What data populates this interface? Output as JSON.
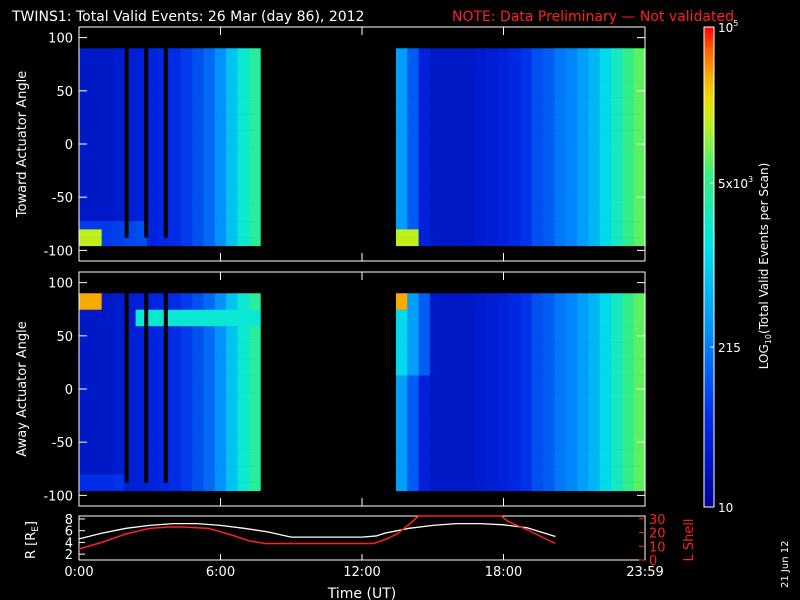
{
  "header": {
    "title": "TWINS1: Total Valid Events: 26 Mar (day  86), 2012",
    "note": "NOTE: Data Preliminary — Not validated"
  },
  "stamp": "21 Jun 12",
  "colors": {
    "note": "#ff2020",
    "l_shell": "#ff2020",
    "r_earth": "#ffffff",
    "background": "#000000"
  },
  "chart_data": [
    {
      "type": "heatmap",
      "panel": "toward",
      "ylabel": "Toward Actuator Angle",
      "ylim": [
        -110,
        110
      ],
      "yticks": [
        "100",
        "50",
        "0",
        "-50",
        "-100"
      ],
      "xlim_hours": [
        0,
        24
      ],
      "data_extent_y": [
        -88,
        90
      ],
      "segments_hours": [
        [
          0,
          7.9
        ],
        [
          12.5,
          20.7
        ]
      ],
      "gap_lines_hours": [
        2.02,
        2.85,
        3.68
      ],
      "column_level_log": [
        1.45,
        1.45,
        1.45,
        1.5,
        1.55,
        1.6,
        1.65,
        1.7,
        1.75,
        1.85,
        2.0,
        2.2,
        2.5,
        2.9,
        3.3,
        3.6,
        null,
        null,
        null,
        null,
        null,
        null,
        null,
        null,
        null,
        null,
        null,
        null,
        2.6,
        2.1,
        1.6,
        1.45,
        1.45,
        1.45,
        1.45,
        1.5,
        1.55,
        1.6,
        1.7,
        1.8,
        2.0,
        2.1,
        2.3,
        2.4,
        2.6,
        2.8,
        3.1,
        3.4,
        3.7,
        3.9
      ]
    },
    {
      "type": "heatmap",
      "panel": "away",
      "ylabel": "Away Actuator Angle",
      "ylim": [
        -110,
        110
      ],
      "yticks": [
        "100",
        "50",
        "0",
        "-50",
        "-100"
      ],
      "xlim_hours": [
        0,
        24
      ],
      "data_extent_y": [
        -88,
        90
      ],
      "segments_hours": [
        [
          0,
          7.9
        ],
        [
          12.5,
          20.7
        ]
      ],
      "gap_lines_hours": [
        2.02,
        2.85,
        3.68
      ]
    },
    {
      "type": "line",
      "panel": "orbit",
      "xlabel": "Time (UT)",
      "xticks": [
        "0:00",
        "6:00",
        "12:00",
        "18:00",
        "23:59"
      ],
      "xlim_hours": [
        0,
        24
      ],
      "ylabel_left": "R [R",
      "ylabel_left_sub": "E",
      "ylabel_left_close": "]",
      "yticks_left": [
        "8",
        "6",
        "4",
        "2"
      ],
      "ylim_left": [
        1,
        8.5
      ],
      "ylabel_right": "L Shell",
      "yticks_right": [
        "30",
        "20",
        "10",
        "0"
      ],
      "ylim_right": [
        0,
        32
      ],
      "series": [
        {
          "name": "R",
          "x": [
            0,
            1,
            2,
            3,
            4,
            5,
            6,
            7,
            8,
            9,
            10,
            11,
            12,
            12.6,
            13,
            14,
            15,
            16,
            17,
            18,
            19,
            20.2
          ],
          "y": [
            4.6,
            5.6,
            6.4,
            6.9,
            7.2,
            7.2,
            6.9,
            6.4,
            5.8,
            4.9,
            4.9,
            4.9,
            4.9,
            5.1,
            5.6,
            6.4,
            6.9,
            7.2,
            7.2,
            7.0,
            6.5,
            5.0
          ]
        },
        {
          "name": "L Shell",
          "x": [
            0,
            1,
            2,
            3,
            3.8,
            4.4,
            5.5,
            6.5,
            7.2,
            7.9,
            12.5,
            13.0,
            13.5,
            14.0,
            14.4,
            17.9,
            18.2,
            19.0,
            20.2
          ],
          "y": [
            8,
            13,
            19,
            23,
            24,
            24,
            23,
            18,
            14,
            12,
            12,
            15,
            19,
            26,
            32,
            32,
            28,
            22,
            12
          ]
        }
      ]
    }
  ],
  "colorbar": {
    "label": "LOG",
    "label_sub": "10",
    "label_rest": "(Total Valid Events per Scan)",
    "ticks": [
      {
        "text": "10",
        "log": 1.0
      },
      {
        "text": "215",
        "log": 2.333
      },
      {
        "text": "5x10",
        "sup": "3",
        "log": 3.699
      },
      {
        "text": "10",
        "sup": "5",
        "log": 5.0
      }
    ],
    "range_log": [
      1,
      5
    ]
  }
}
